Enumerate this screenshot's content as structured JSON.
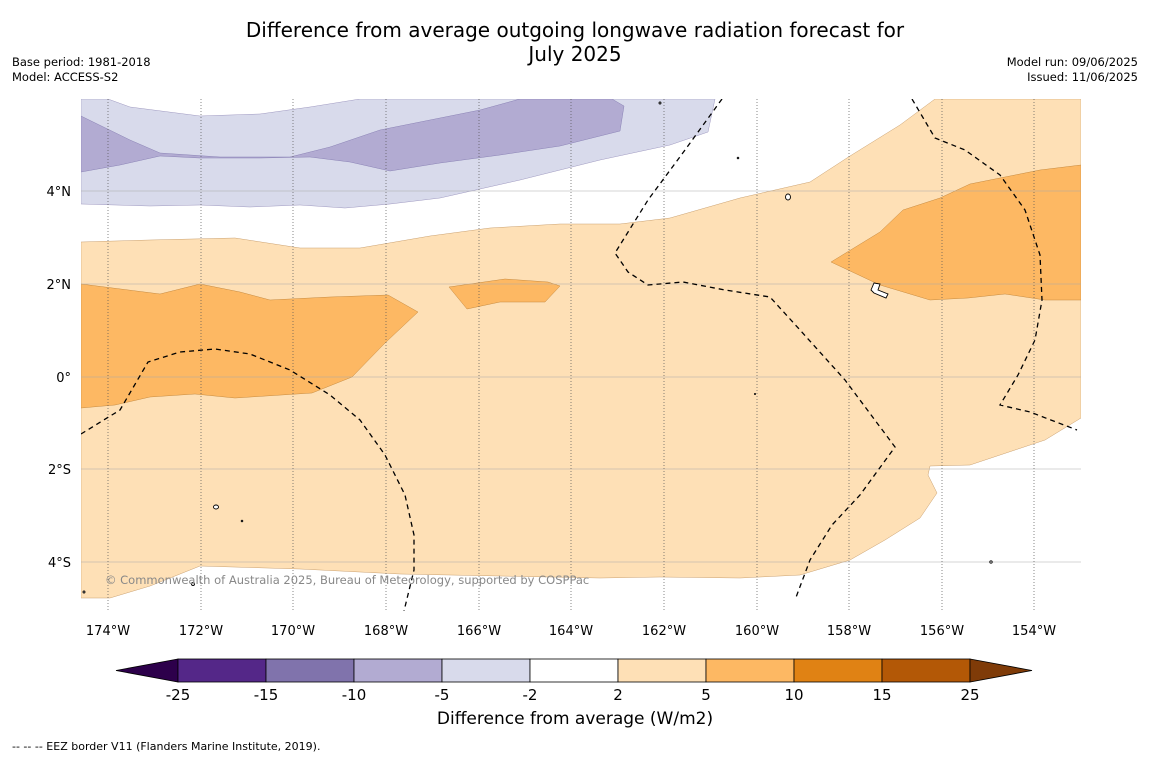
{
  "title": {
    "line1": "Difference from average outgoing longwave radiation forecast for",
    "line2": "July 2025"
  },
  "meta_left": {
    "base_period": "Base period: 1981-2018",
    "model": "Model: ACCESS-S2"
  },
  "meta_right": {
    "model_run": "Model run: 09/06/2025",
    "issued": "Issued: 11/06/2025"
  },
  "latitude_labels": [
    "4°N",
    "2°N",
    "0°",
    "2°S",
    "4°S"
  ],
  "longitude_labels": [
    "174°W",
    "172°W",
    "170°W",
    "168°W",
    "166°W",
    "164°W",
    "162°W",
    "160°W",
    "158°W",
    "156°W",
    "154°W"
  ],
  "copyright": "© Commonwealth of Australia 2025, Bureau of Meteorology, supported by COSPPac",
  "colorbar": {
    "ticks": [
      "-25",
      "-15",
      "-10",
      "-5",
      "-2",
      "2",
      "5",
      "10",
      "15",
      "25"
    ],
    "colors": [
      "#542788",
      "#8073ac",
      "#b2abd2",
      "#d8daeb",
      "#ffffff",
      "#fee0b6",
      "#fdb863",
      "#e08214",
      "#b35806"
    ],
    "under_color": "#2d004b",
    "over_color": "#7f3b08",
    "label": "Difference from average (W/m2)"
  },
  "footnote": "--  --  -- EEZ border V11 (Flanders Marine Institute, 2019)."
}
